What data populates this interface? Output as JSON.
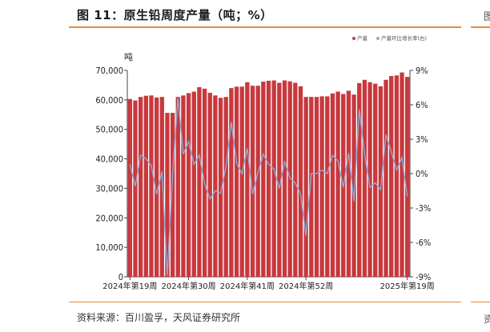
{
  "header": {
    "title": "图 11：原生铅周度产量（吨；%）"
  },
  "footer": {
    "source": "资料来源：百川盈孚，天风证券研究所"
  },
  "side": {
    "clip_top": "图",
    "clip_bottom": "资"
  },
  "colors": {
    "bar": "#c9383c",
    "line": "#8fa9d8",
    "accent_rule": "#e98a3b"
  },
  "chart_data": {
    "type": "bar",
    "y_unit": "吨",
    "legend": [
      "产量",
      "产量环比增长率(右)"
    ],
    "legend_position": "top-right",
    "grid": false,
    "ylim": [
      0,
      70000
    ],
    "y_ticks": [
      "0",
      "10,000",
      "20,000",
      "30,000",
      "40,000",
      "50,000",
      "60,000",
      "70,000"
    ],
    "y2lim": [
      -9,
      9
    ],
    "y2_ticks": [
      "-9%",
      "-6%",
      "-3%",
      "0%",
      "3%",
      "6%",
      "9%"
    ],
    "x_tick_labels": [
      {
        "index": 0,
        "label": "2024年第19周"
      },
      {
        "index": 11,
        "label": "2024年第30周"
      },
      {
        "index": 22,
        "label": "2024年第41周"
      },
      {
        "index": 33,
        "label": "2024年第52周"
      },
      {
        "index": 52,
        "label": "2025年第19周"
      }
    ],
    "series": [
      {
        "name": "产量",
        "kind": "bar",
        "values": [
          60300,
          59800,
          61000,
          61400,
          61500,
          60800,
          61000,
          55600,
          55600,
          61000,
          61500,
          62300,
          62800,
          64300,
          63800,
          62400,
          61500,
          60700,
          61000,
          64000,
          64500,
          64500,
          66000,
          64800,
          64800,
          66200,
          66500,
          66600,
          65800,
          66600,
          66300,
          65800,
          64600,
          61000,
          61000,
          61000,
          61200,
          61200,
          62200,
          62800,
          62000,
          63100,
          61800,
          65700,
          66800,
          66000,
          65500,
          64600,
          66800,
          68100,
          68300,
          69300,
          67800
        ]
      },
      {
        "name": "产量环比增长率(右)",
        "kind": "line",
        "axis": "right",
        "values": [
          0.8,
          -1.1,
          1.6,
          1.3,
          0.7,
          -1.8,
          0.2,
          -8.9,
          0.0,
          6.6,
          1.7,
          2.8,
          0.8,
          1.6,
          -0.9,
          -2.2,
          -1.5,
          -1.7,
          0.6,
          4.5,
          0.9,
          0.0,
          2.2,
          -1.8,
          0.1,
          1.7,
          0.8,
          0.4,
          -1.3,
          1.1,
          -0.4,
          -0.8,
          -1.8,
          -5.4,
          0.0,
          0.0,
          0.3,
          0.0,
          1.6,
          1.1,
          -1.2,
          1.8,
          -2.4,
          5.6,
          1.7,
          -1.2,
          -0.8,
          -1.4,
          3.4,
          1.9,
          0.3,
          1.4,
          -2.0
        ]
      }
    ]
  }
}
